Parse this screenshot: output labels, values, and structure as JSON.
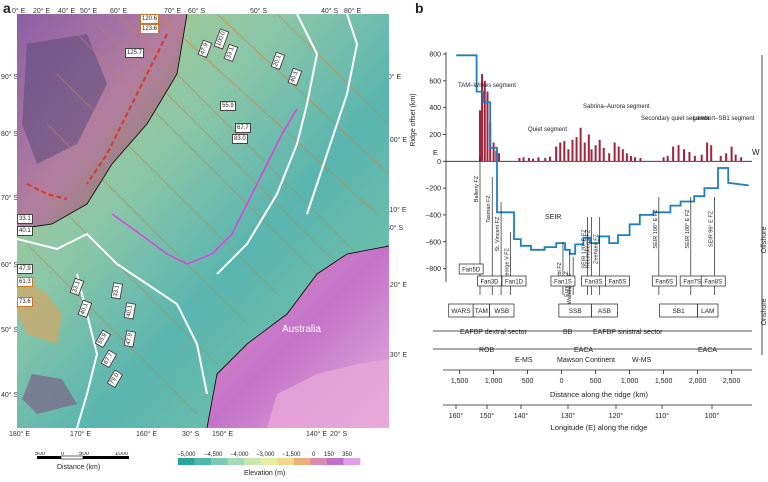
{
  "panel_a": {
    "letter": "a",
    "top_deg": [
      "0° E",
      "20° E",
      "40° E",
      "50° E",
      "60° E",
      "70° E",
      "60° S",
      "50° S",
      "40° S",
      "80° E"
    ],
    "left_deg": [
      "90° S",
      "80° S",
      "70° S",
      "60° S",
      "50° S",
      "40° S"
    ],
    "right_deg": [
      "90° E",
      "100° E",
      "110° E",
      "120° E",
      "130° E"
    ],
    "right_lat": "30° S",
    "bottom_deg": [
      "180° E",
      "170° E",
      "160° E",
      "30° S",
      "150° E",
      "140° E",
      "20° S"
    ],
    "place_label": "Australia",
    "age_labels": [
      "120.6",
      "123.6",
      "125.7",
      "55.9",
      "67.7",
      "83.0",
      "20.1",
      "40.1",
      "100.0",
      "47.9",
      "33.1",
      "33.1",
      "40.1",
      "47.9",
      "61.3",
      "73.6",
      "33.1",
      "40.1",
      "47.9",
      "55.9",
      "67.7",
      "79.0",
      "33.1",
      "40.1"
    ],
    "scale": {
      "ticks": [
        "500",
        "0",
        "500",
        "1000"
      ],
      "label": "Distance (km)"
    },
    "elevation": {
      "ticks": [
        "−5,000",
        "−4,500",
        "−4,000",
        "−3,000",
        "−1,500",
        "0",
        "150",
        "350"
      ],
      "label": "Elevation (m)",
      "colors": [
        "#2aa39a",
        "#4fb8a8",
        "#7fcab5",
        "#a6d9b5",
        "#c9e6b0",
        "#e5eea5",
        "#f0d98a",
        "#e9b07a",
        "#d98cb0",
        "#c070c8",
        "#e0a0e8"
      ]
    }
  },
  "panel_b": {
    "letter": "b",
    "ylabel": "Ridge offset (km)",
    "y_ticks": [
      "800",
      "600",
      "400",
      "200",
      "0",
      "−200",
      "−400",
      "−600",
      "−800"
    ],
    "ylim": [
      -900,
      800
    ],
    "east": "E",
    "west": "W",
    "segments": [
      "TAM–Wilkes segment",
      "Quiet segment",
      "Sabrina–Aurora segment",
      "Secondary quiet segment",
      "Lambert–SB1 segment"
    ],
    "seir": "SEIR",
    "fz_labels": [
      "Balleny FZ",
      "Tasman FZ",
      "St. Vincent FZ",
      "George V FZ",
      "Bruzbi FZ",
      "Eureka FZ",
      "Warringa FZ",
      "SEIR 120° E FZ",
      "Heemskerck FZ",
      "Zeehaen FZ",
      "SEIR 106° E FZ",
      "SEIR 100° E FZ",
      "SEIR 96° E FZ"
    ],
    "fans": [
      "Fan5D",
      "Fan3D",
      "Fan1D",
      "Fan1S",
      "Fan3S",
      "Fan5S",
      "Fan6S",
      "Fan7S",
      "Fan8S"
    ],
    "onshore_units": [
      "WARS",
      "TAM",
      "WSB",
      "SSB",
      "ASB",
      "SB1",
      "LAM"
    ],
    "offshore": "Offshore",
    "onshore": "Onshore",
    "sectors": [
      "EAFBP dextral sector",
      "BB",
      "EAFBP sinistral sector"
    ],
    "continent": [
      "ROB",
      "EACA",
      "EACA",
      "E-MS",
      "Mawson Continent",
      "W-MS"
    ],
    "distance": {
      "ticks": [
        "1,500",
        "1,000",
        "500",
        "0",
        "500",
        "1,000",
        "1,500",
        "2,000",
        "2,500"
      ],
      "label": "Distance along the ridge (km)"
    },
    "longitude": {
      "ticks": [
        "160°",
        "150°",
        "140°",
        "130°",
        "120°",
        "110°",
        "100°"
      ],
      "label": "Longitude (E) along the ridge"
    }
  },
  "chart_data": {
    "type": "line",
    "x_label": "Distance along the ridge (km)",
    "ylabel": "Ridge offset (km)",
    "x": [
      -1550,
      -1250,
      -1250,
      -1150,
      -1150,
      -1050,
      -1050,
      -950,
      -950,
      -700,
      -700,
      -600,
      -600,
      -450,
      -450,
      -250,
      -250,
      -80,
      -80,
      50,
      50,
      120,
      120,
      200,
      200,
      320,
      320,
      420,
      420,
      550,
      550,
      700,
      700,
      830,
      830,
      1000,
      1000,
      1150,
      1150,
      1350,
      1350,
      1600,
      1600,
      1750,
      1750,
      1950,
      1950,
      2100,
      2100,
      2300,
      2300,
      2450,
      2450,
      2750
    ],
    "y": [
      790,
      790,
      520,
      520,
      440,
      440,
      100,
      100,
      -380,
      -380,
      -580,
      -580,
      -630,
      -630,
      -660,
      -660,
      -640,
      -640,
      -610,
      -610,
      -660,
      -660,
      -690,
      -690,
      -620,
      -620,
      -570,
      -570,
      -610,
      -610,
      -560,
      -560,
      -610,
      -610,
      -550,
      -550,
      -470,
      -470,
      -400,
      -400,
      -380,
      -380,
      -330,
      -330,
      -300,
      -300,
      -260,
      -260,
      -200,
      -200,
      -50,
      -50,
      -160,
      -180
    ],
    "histogram": {
      "x": [
        -1200,
        -1170,
        -1130,
        -1090,
        -1050,
        -1000,
        -960,
        -920,
        -620,
        -560,
        -480,
        -420,
        -340,
        -240,
        -170,
        -80,
        -20,
        40,
        100,
        160,
        220,
        280,
        340,
        400,
        440,
        500,
        560,
        620,
        700,
        780,
        840,
        900,
        960,
        1020,
        1080,
        1160,
        1500,
        1560,
        1640,
        1720,
        1800,
        1880,
        1960,
        2060,
        2140,
        2200,
        2340,
        2420,
        2500,
        2560,
        2640
      ],
      "y": [
        380,
        650,
        600,
        520,
        290,
        140,
        80,
        60,
        25,
        30,
        25,
        20,
        30,
        25,
        35,
        110,
        140,
        150,
        90,
        160,
        180,
        250,
        140,
        200,
        90,
        120,
        160,
        100,
        60,
        140,
        110,
        90,
        60,
        40,
        30,
        25,
        30,
        40,
        110,
        120,
        90,
        70,
        40,
        50,
        140,
        120,
        40,
        60,
        110,
        50,
        30
      ]
    },
    "ylim": [
      -900,
      800
    ]
  }
}
